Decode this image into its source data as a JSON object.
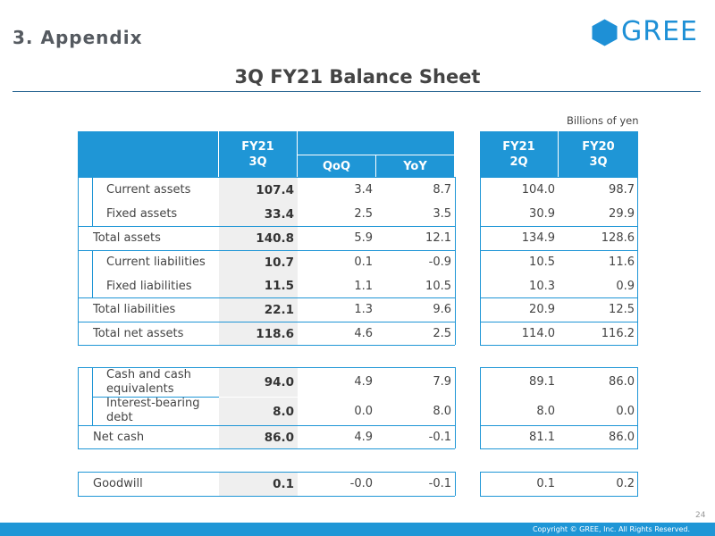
{
  "section_title": "3. Appendix",
  "logo_text": "GREE",
  "page_title": "3Q FY21 Balance Sheet",
  "unit_note": "Billions of yen",
  "headers": {
    "current": "FY21\n3Q",
    "qoq": "QoQ",
    "yoy": "YoY",
    "prev_q": "FY21\n2Q",
    "prev_y": "FY20\n3Q"
  },
  "rows": [
    {
      "label": "Current assets",
      "fy21_3q": "107.4",
      "qoq": "3.4",
      "yoy": "8.7",
      "fy21_2q": "104.0",
      "fy20_3q": "98.7"
    },
    {
      "label": "Fixed assets",
      "fy21_3q": "33.4",
      "qoq": "2.5",
      "yoy": "3.5",
      "fy21_2q": "30.9",
      "fy20_3q": "29.9"
    },
    {
      "label": "Total assets",
      "fy21_3q": "140.8",
      "qoq": "5.9",
      "yoy": "12.1",
      "fy21_2q": "134.9",
      "fy20_3q": "128.6"
    },
    {
      "label": "Current liabilities",
      "fy21_3q": "10.7",
      "qoq": "0.1",
      "yoy": "-0.9",
      "fy21_2q": "10.5",
      "fy20_3q": "11.6"
    },
    {
      "label": "Fixed liabilities",
      "fy21_3q": "11.5",
      "qoq": "1.1",
      "yoy": "10.5",
      "fy21_2q": "10.3",
      "fy20_3q": "0.9"
    },
    {
      "label": "Total liabilities",
      "fy21_3q": "22.1",
      "qoq": "1.3",
      "yoy": "9.6",
      "fy21_2q": "20.9",
      "fy20_3q": "12.5"
    },
    {
      "label": "Total net assets",
      "fy21_3q": "118.6",
      "qoq": "4.6",
      "yoy": "2.5",
      "fy21_2q": "114.0",
      "fy20_3q": "116.2"
    },
    {
      "label": "Cash and cash equivalents",
      "fy21_3q": "94.0",
      "qoq": "4.9",
      "yoy": "7.9",
      "fy21_2q": "89.1",
      "fy20_3q": "86.0"
    },
    {
      "label": "Interest-bearing debt",
      "fy21_3q": "8.0",
      "qoq": "0.0",
      "yoy": "8.0",
      "fy21_2q": "8.0",
      "fy20_3q": "0.0"
    },
    {
      "label": "Net cash",
      "fy21_3q": "86.0",
      "qoq": "4.9",
      "yoy": "-0.1",
      "fy21_2q": "81.1",
      "fy20_3q": "86.0"
    },
    {
      "label": "Goodwill",
      "fy21_3q": "0.1",
      "qoq": "-0.0",
      "yoy": "-0.1",
      "fy21_2q": "0.1",
      "fy20_3q": "0.2"
    }
  ],
  "page_number": "24",
  "copyright": "Copyright © GREE, Inc. All Rights Reserved.",
  "colors": {
    "accent": "#1f96d6",
    "title_rule": "#1f5f8e",
    "bold_cell_bg": "#efefef"
  }
}
